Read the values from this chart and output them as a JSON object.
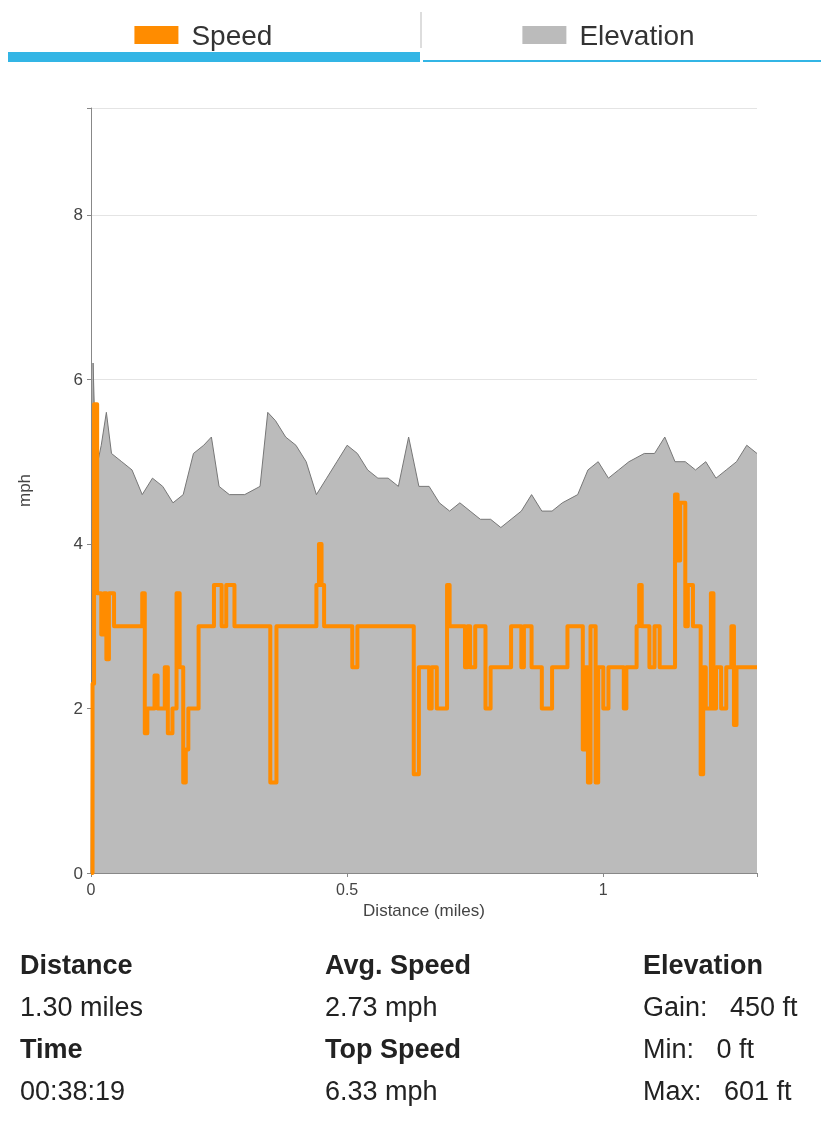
{
  "chart_data": {
    "type": "step",
    "xlabel": "Distance (miles)",
    "ylabel": "mph",
    "xlim": [
      0,
      1.3
    ],
    "xticks": [
      0,
      0.5,
      1
    ],
    "ylim": [
      0,
      9.3
    ],
    "yticks": [
      0,
      2,
      4,
      6,
      8
    ],
    "grid": "y",
    "legend": "top",
    "marker": "none",
    "line_style": "solid",
    "series": [
      {
        "name": "Speed",
        "type": "step",
        "color": "#ff8c00",
        "x": [
          0,
          0.003,
          0.006,
          0.012,
          0.02,
          0.025,
          0.03,
          0.035,
          0.045,
          0.1,
          0.105,
          0.11,
          0.124,
          0.13,
          0.144,
          0.15,
          0.159,
          0.167,
          0.173,
          0.18,
          0.185,
          0.19,
          0.21,
          0.24,
          0.255,
          0.264,
          0.28,
          0.35,
          0.362,
          0.44,
          0.445,
          0.45,
          0.455,
          0.51,
          0.52,
          0.63,
          0.64,
          0.66,
          0.665,
          0.675,
          0.695,
          0.7,
          0.73,
          0.735,
          0.74,
          0.75,
          0.77,
          0.78,
          0.82,
          0.84,
          0.845,
          0.86,
          0.88,
          0.9,
          0.93,
          0.96,
          0.965,
          0.97,
          0.975,
          0.985,
          0.99,
          1.0,
          1.01,
          1.04,
          1.045,
          1.065,
          1.07,
          1.075,
          1.09,
          1.1,
          1.11,
          1.14,
          1.145,
          1.15,
          1.16,
          1.165,
          1.175,
          1.19,
          1.195,
          1.2,
          1.21,
          1.215,
          1.22,
          1.23,
          1.24,
          1.25,
          1.255,
          1.26,
          1.3
        ],
        "values": [
          0,
          2.3,
          5.7,
          3.4,
          2.9,
          3.4,
          2.6,
          3.4,
          3.0,
          3.4,
          1.7,
          2.0,
          2.4,
          2.0,
          2.5,
          1.7,
          2.0,
          3.4,
          2.5,
          1.1,
          1.5,
          2.0,
          3.0,
          3.5,
          3.0,
          3.5,
          3.0,
          1.1,
          3.0,
          3.5,
          4.0,
          3.5,
          3.0,
          2.5,
          3.0,
          1.2,
          2.5,
          2.0,
          2.5,
          2.0,
          3.5,
          3.0,
          2.5,
          3.0,
          2.5,
          3.0,
          2.0,
          2.5,
          3.0,
          2.5,
          3.0,
          2.5,
          2.0,
          2.5,
          3.0,
          1.5,
          2.5,
          1.1,
          3.0,
          1.1,
          2.5,
          2.0,
          2.5,
          2.0,
          2.5,
          3.0,
          3.5,
          3.0,
          2.5,
          3.0,
          2.5,
          4.6,
          3.8,
          4.5,
          3.0,
          3.5,
          3.0,
          1.2,
          2.5,
          2.0,
          3.4,
          2.0,
          2.5,
          2.0,
          2.5,
          3.0,
          1.8,
          2.5,
          2.5
        ]
      },
      {
        "name": "Elevation",
        "type": "area",
        "color": "#bbbbbb",
        "x": [
          0,
          0.004,
          0.01,
          0.02,
          0.03,
          0.04,
          0.06,
          0.08,
          0.1,
          0.12,
          0.14,
          0.16,
          0.18,
          0.2,
          0.22,
          0.235,
          0.25,
          0.27,
          0.3,
          0.33,
          0.345,
          0.36,
          0.38,
          0.4,
          0.42,
          0.44,
          0.46,
          0.48,
          0.5,
          0.52,
          0.54,
          0.56,
          0.58,
          0.6,
          0.62,
          0.64,
          0.66,
          0.68,
          0.7,
          0.72,
          0.74,
          0.76,
          0.78,
          0.8,
          0.82,
          0.84,
          0.86,
          0.88,
          0.9,
          0.92,
          0.95,
          0.97,
          0.99,
          1.01,
          1.03,
          1.05,
          1.08,
          1.1,
          1.12,
          1.14,
          1.16,
          1.18,
          1.2,
          1.22,
          1.24,
          1.26,
          1.28,
          1.3
        ],
        "values": [
          0,
          6.2,
          4.9,
          5.2,
          5.6,
          5.1,
          5.0,
          4.9,
          4.6,
          4.8,
          4.7,
          4.5,
          4.6,
          5.1,
          5.2,
          5.3,
          4.7,
          4.6,
          4.6,
          4.7,
          5.6,
          5.5,
          5.3,
          5.2,
          5.0,
          4.6,
          4.8,
          5.0,
          5.2,
          5.1,
          4.9,
          4.8,
          4.8,
          4.7,
          5.3,
          4.7,
          4.7,
          4.5,
          4.4,
          4.5,
          4.4,
          4.3,
          4.3,
          4.2,
          4.3,
          4.4,
          4.6,
          4.4,
          4.4,
          4.5,
          4.6,
          4.9,
          5.0,
          4.8,
          4.9,
          5.0,
          5.1,
          5.1,
          5.3,
          5.0,
          5.0,
          4.9,
          5.0,
          4.8,
          4.9,
          5.0,
          5.2,
          5.1
        ]
      }
    ],
    "annotations": [
      "Distance",
      "1.30 miles",
      "Time",
      "00:38:19",
      "Avg. Speed",
      "2.73 mph",
      "Top Speed",
      "6.33 mph",
      "Elevation",
      "Gain:   450 ft",
      "Min:   0 ft",
      "Max:   601 ft"
    ]
  }
}
